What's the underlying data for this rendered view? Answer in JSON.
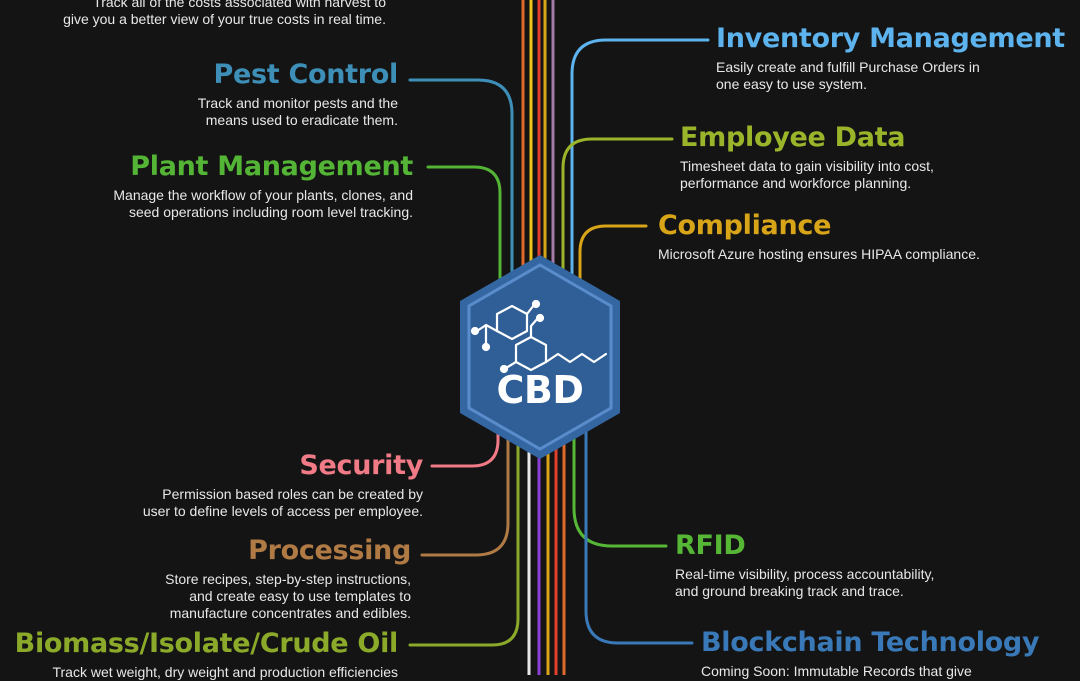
{
  "hub": {
    "label": "CBD",
    "icon": "cbd-molecule-icon",
    "fill": "#2f5f96",
    "stroke": "#4f86c6"
  },
  "colors": {
    "pest_control": "#3d8fb8",
    "plant_management": "#54b435",
    "security": "#f07a86",
    "processing": "#b07a45",
    "biomass": "#8caa2a",
    "inventory": "#5cb3ee",
    "employee": "#9bb52b",
    "compliance": "#d8a418",
    "rfid": "#56b736",
    "blockchain": "#3a79b8",
    "harvest": "#e06a2c"
  },
  "left_features": [
    {
      "id": "harvest",
      "title": "",
      "desc_lines": [
        "Track all of the costs associated with harvest to",
        "give you a better view of your true costs in real time."
      ]
    },
    {
      "id": "pest_control",
      "title": "Pest Control",
      "desc_lines": [
        "Track and monitor pests and the",
        "means used to eradicate them."
      ]
    },
    {
      "id": "plant_management",
      "title": "Plant Management",
      "desc_lines": [
        "Manage the workflow of your plants, clones, and",
        "seed operations including room level tracking."
      ]
    },
    {
      "id": "security",
      "title": "Security",
      "desc_lines": [
        "Permission based roles can be created by",
        "user to define levels of access per employee."
      ]
    },
    {
      "id": "processing",
      "title": "Processing",
      "desc_lines": [
        "Store recipes, step-by-step instructions,",
        "and create easy to use templates to",
        "manufacture concentrates and edibles."
      ]
    },
    {
      "id": "biomass",
      "title": "Biomass/Isolate/Crude Oil",
      "desc_lines": [
        "Track wet weight, dry weight and production efficiencies"
      ]
    }
  ],
  "right_features": [
    {
      "id": "inventory",
      "title": "Inventory Management",
      "desc_lines": [
        "Easily create and fulfill Purchase Orders in",
        "one easy to use system."
      ]
    },
    {
      "id": "employee",
      "title": "Employee Data",
      "desc_lines": [
        "Timesheet data to gain visibility into cost,",
        "performance and workforce planning."
      ]
    },
    {
      "id": "compliance",
      "title": "Compliance",
      "desc_lines": [
        "Microsoft Azure hosting ensures HIPAA compliance."
      ]
    },
    {
      "id": "rfid",
      "title": "RFID",
      "desc_lines": [
        "Real-time visibility, process accountability,",
        "and ground breaking track and trace."
      ]
    },
    {
      "id": "blockchain",
      "title": "Blockchain Technology",
      "desc_lines": [
        "Coming Soon:  Immutable Records that give"
      ]
    }
  ]
}
